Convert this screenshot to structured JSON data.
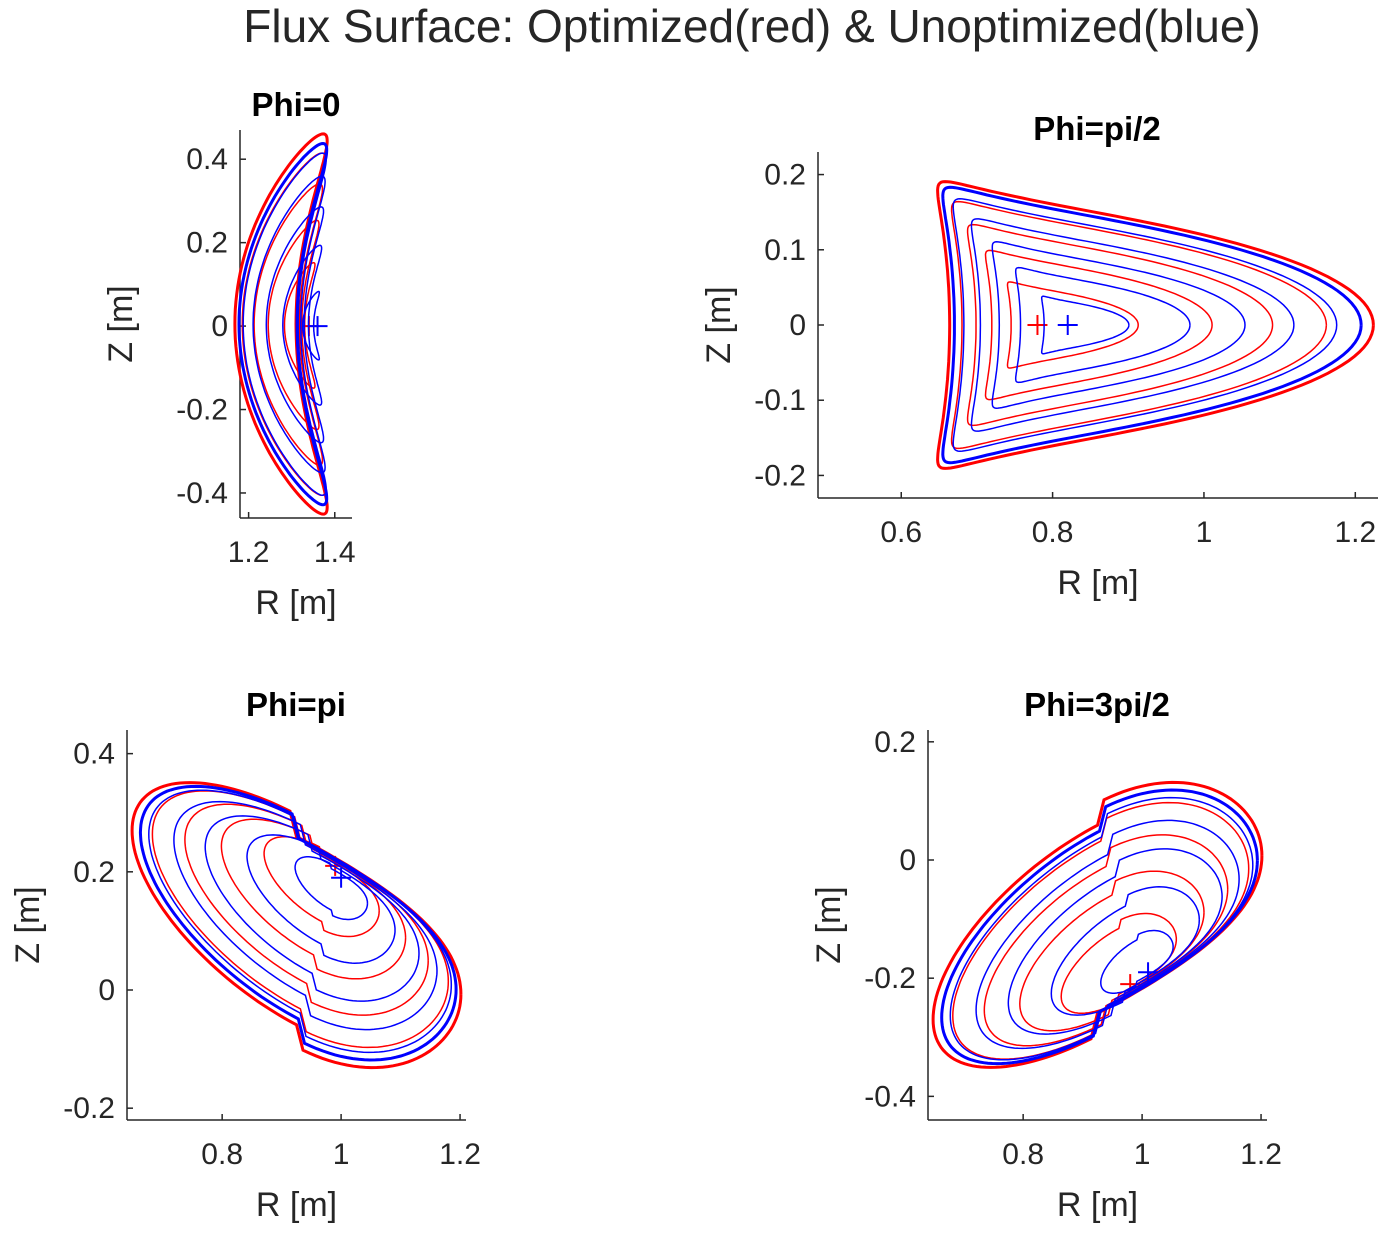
{
  "figure": {
    "title": "Flux Surface:  Optimized(red) & Unoptimized(blue)"
  },
  "colors": {
    "optimized": "#ff0000",
    "unoptimized": "#0000ff",
    "axes": "#262626"
  },
  "chart_data": [
    {
      "type": "line",
      "title": "Phi=0",
      "xlabel": "R [m]",
      "ylabel": "Z [m]",
      "xlim": [
        1.18,
        1.44
      ],
      "ylim": [
        -0.46,
        0.47
      ],
      "xticks": [
        1.2,
        1.4
      ],
      "xtick_labels": [
        "1.2",
        "1.4"
      ],
      "yticks": [
        0.4,
        0.2,
        0,
        -0.2,
        -0.4
      ],
      "ytick_labels": [
        "0.4",
        "0.2",
        "0",
        "-0.2",
        "-0.4"
      ],
      "grid": false,
      "shape": "bean",
      "series": [
        {
          "color": "red",
          "axis": [
            1.34,
            0
          ],
          "surfaces": [
            {
              "r": 0.045,
              "lw": 1.5
            },
            {
              "r": 0.33,
              "lw": 1.5
            },
            {
              "r": 0.55,
              "lw": 1.5
            },
            {
              "r": 0.74,
              "lw": 1.5
            },
            {
              "r": 0.9,
              "lw": 1.5
            },
            {
              "r": 1.0,
              "lw": 3
            }
          ]
        },
        {
          "color": "blue",
          "axis": [
            1.36,
            0
          ],
          "surfaces": [
            {
              "r": 0.045,
              "lw": 1.5
            },
            {
              "r": 0.18,
              "lw": 1.5
            },
            {
              "r": 0.42,
              "lw": 1.5
            },
            {
              "r": 0.62,
              "lw": 1.5
            },
            {
              "r": 0.78,
              "lw": 1.5
            },
            {
              "r": 0.9,
              "lw": 1.5
            },
            {
              "r": 0.95,
              "lw": 3
            }
          ]
        }
      ]
    },
    {
      "type": "line",
      "title": "Phi=pi/2",
      "xlabel": "R [m]",
      "ylabel": "Z [m]",
      "xlim": [
        0.49,
        1.23
      ],
      "ylim": [
        -0.23,
        0.23
      ],
      "xticks": [
        0.6,
        0.8,
        1,
        1.2
      ],
      "xtick_labels": [
        "0.6",
        "0.8",
        "1",
        "1.2"
      ],
      "yticks": [
        0.2,
        0.1,
        0,
        -0.1,
        -0.2
      ],
      "ytick_labels": [
        "0.2",
        "0.1",
        "0",
        "-0.1",
        "-0.2"
      ],
      "grid": false,
      "shape": "triangle",
      "series": [
        {
          "color": "red",
          "axis": [
            0.78,
            0
          ],
          "surfaces": [
            {
              "r": 0.045,
              "lw": 1.5
            },
            {
              "r": 0.3,
              "lw": 1.5
            },
            {
              "r": 0.52,
              "lw": 1.5
            },
            {
              "r": 0.7,
              "lw": 1.5
            },
            {
              "r": 0.86,
              "lw": 1.5
            },
            {
              "r": 1.0,
              "lw": 3
            }
          ]
        },
        {
          "color": "blue",
          "axis": [
            0.82,
            0
          ],
          "surfaces": [
            {
              "r": 0.045,
              "lw": 1.5
            },
            {
              "r": 0.2,
              "lw": 1.5
            },
            {
              "r": 0.4,
              "lw": 1.5
            },
            {
              "r": 0.58,
              "lw": 1.5
            },
            {
              "r": 0.74,
              "lw": 1.5
            },
            {
              "r": 0.88,
              "lw": 1.5
            },
            {
              "r": 0.96,
              "lw": 3
            }
          ]
        }
      ]
    },
    {
      "type": "line",
      "title": "Phi=pi",
      "xlabel": "R [m]",
      "ylabel": "Z [m]",
      "xlim": [
        0.64,
        1.21
      ],
      "ylim": [
        -0.22,
        0.44
      ],
      "xticks": [
        0.8,
        1,
        1.2
      ],
      "xtick_labels": [
        "0.8",
        "1",
        "1.2"
      ],
      "yticks": [
        0.4,
        0.2,
        0,
        -0.2
      ],
      "ytick_labels": [
        "0.4",
        "0.2",
        "0",
        "-0.2"
      ],
      "grid": false,
      "shape": "kidney",
      "series": [
        {
          "color": "red",
          "axis": [
            0.99,
            0.21
          ],
          "surfaces": [
            {
              "r": 0.045,
              "lw": 1.5
            },
            {
              "r": 0.35,
              "lw": 1.5
            },
            {
              "r": 0.56,
              "lw": 1.5
            },
            {
              "r": 0.74,
              "lw": 1.5
            },
            {
              "r": 0.9,
              "lw": 1.5
            },
            {
              "r": 1.0,
              "lw": 3
            }
          ]
        },
        {
          "color": "blue",
          "axis": [
            1.0,
            0.19
          ],
          "surfaces": [
            {
              "r": 0.045,
              "lw": 1.5
            },
            {
              "r": 0.22,
              "lw": 1.5
            },
            {
              "r": 0.45,
              "lw": 1.5
            },
            {
              "r": 0.65,
              "lw": 1.5
            },
            {
              "r": 0.8,
              "lw": 1.5
            },
            {
              "r": 0.92,
              "lw": 1.5
            },
            {
              "r": 0.96,
              "lw": 3
            }
          ]
        }
      ]
    },
    {
      "type": "line",
      "title": "Phi=3pi/2",
      "xlabel": "R [m]",
      "ylabel": "Z [m]",
      "xlim": [
        0.64,
        1.21
      ],
      "ylim": [
        -0.44,
        0.22
      ],
      "xticks": [
        0.8,
        1,
        1.2
      ],
      "xtick_labels": [
        "0.8",
        "1",
        "1.2"
      ],
      "yticks": [
        0.2,
        0,
        -0.2,
        -0.4
      ],
      "ytick_labels": [
        "0.2",
        "0",
        "-0.2",
        "-0.4"
      ],
      "grid": false,
      "shape": "kidney-flipped",
      "series": [
        {
          "color": "red",
          "axis": [
            0.98,
            -0.21
          ],
          "surfaces": [
            {
              "r": 0.045,
              "lw": 1.5
            },
            {
              "r": 0.35,
              "lw": 1.5
            },
            {
              "r": 0.56,
              "lw": 1.5
            },
            {
              "r": 0.74,
              "lw": 1.5
            },
            {
              "r": 0.9,
              "lw": 1.5
            },
            {
              "r": 1.0,
              "lw": 3
            }
          ]
        },
        {
          "color": "blue",
          "axis": [
            1.01,
            -0.19
          ],
          "surfaces": [
            {
              "r": 0.045,
              "lw": 1.5
            },
            {
              "r": 0.22,
              "lw": 1.5
            },
            {
              "r": 0.45,
              "lw": 1.5
            },
            {
              "r": 0.65,
              "lw": 1.5
            },
            {
              "r": 0.8,
              "lw": 1.5
            },
            {
              "r": 0.92,
              "lw": 1.5
            },
            {
              "r": 0.96,
              "lw": 3
            }
          ]
        }
      ]
    }
  ]
}
